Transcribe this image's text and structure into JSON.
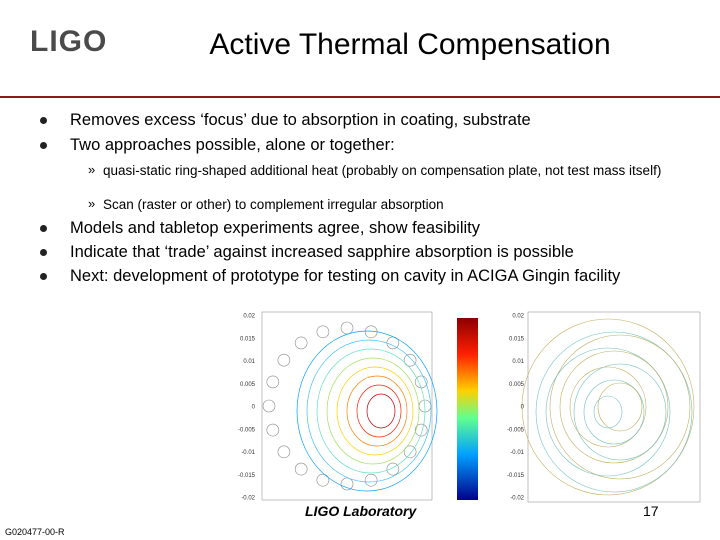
{
  "header": {
    "logo": "LIGO",
    "title": "Active Thermal Compensation"
  },
  "body": {
    "bullets_top": [
      "Removes excess ‘focus’ due to absorption in coating, substrate",
      "Two approaches possible, alone or together:"
    ],
    "sub_bullet_marker": "»",
    "sub_bullets": [
      "quasi-static ring-shaped additional heat (probably on compensation plate, not test mass itself)",
      "Scan (raster or other) to complement irregular absorption"
    ],
    "bullets_bottom": [
      "Models and tabletop experiments agree, show feasibility",
      "Indicate that ‘trade’ against increased sapphire absorption is possible",
      "Next: development of prototype for testing on cavity in ACIGA Gingin facility"
    ]
  },
  "figures": {
    "left_y_ticks": [
      "0.02",
      "0.015",
      "0.01",
      "0.005",
      "0",
      "-0.005",
      "-0.01",
      "-0.015",
      "-0.02"
    ],
    "right_y_ticks": [
      "0.02",
      "0.015",
      "0.01",
      "0.005",
      "0",
      "-0.005",
      "-0.01",
      "-0.015",
      "-0.02"
    ]
  },
  "footer": {
    "lab": "LIGO Laboratory",
    "page": "17",
    "doc_id": "G020477-00-R"
  }
}
